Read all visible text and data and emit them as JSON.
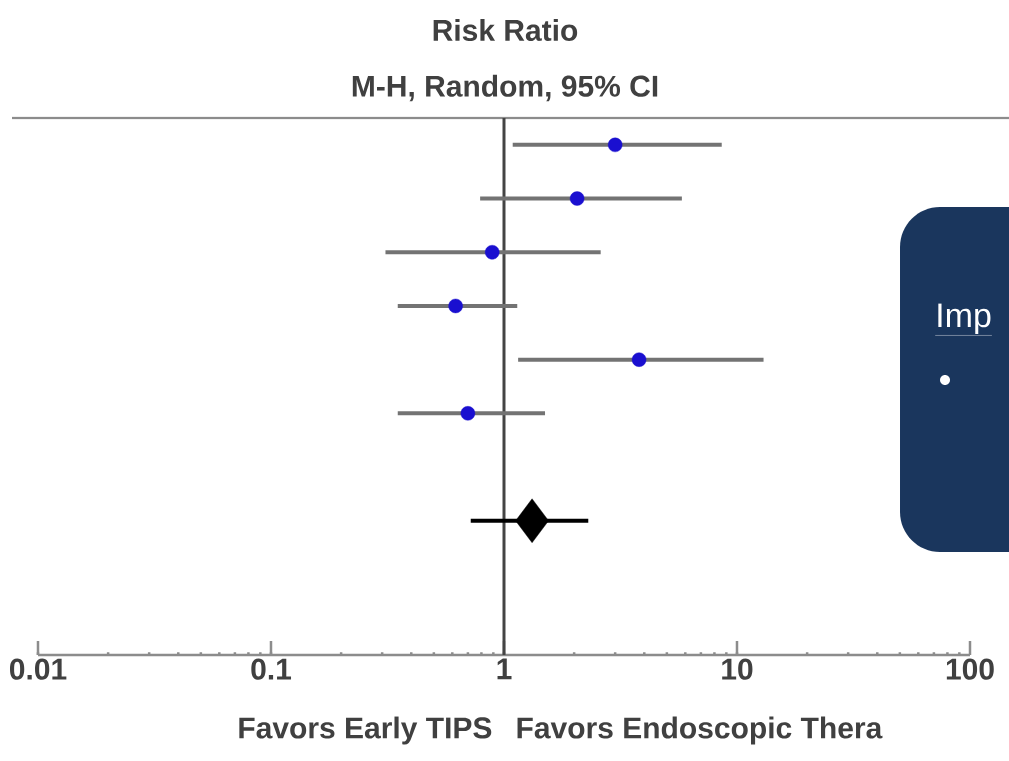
{
  "chart_data": {
    "type": "scatter",
    "orientation": "horizontal",
    "title": "Risk Ratio",
    "subtitle": "M-H, Random, 95% CI",
    "categories": [
      null,
      null,
      null,
      null,
      null,
      null,
      null,
      null,
      null,
      null
    ],
    "log": "x",
    "xlim": [
      0.01,
      100
    ],
    "xticks": [
      0.01,
      0.1,
      1,
      10,
      100
    ],
    "ref_lines": [
      {
        "axis": "x",
        "value": 1,
        "color": "#444444"
      }
    ],
    "series": [
      {
        "type": "scatter",
        "marker": "circle",
        "color": "#1a0fd0",
        "values": [
          3.0,
          2.06,
          0.89,
          0.62,
          3.8,
          0.7,
          null,
          null,
          null,
          null
        ],
        "errors": [
          [
            1.09,
            8.6
          ],
          [
            0.79,
            5.8
          ],
          [
            0.31,
            2.6
          ],
          [
            0.35,
            1.14
          ],
          [
            1.15,
            13
          ],
          [
            0.35,
            1.5
          ],
          null,
          null,
          null,
          null
        ]
      },
      {
        "type": "scatter",
        "marker": "diamond",
        "color": "#000000",
        "values": [
          null,
          null,
          null,
          null,
          null,
          null,
          null,
          1.32,
          null,
          null
        ],
        "errors": [
          null,
          null,
          null,
          null,
          null,
          null,
          null,
          [
            0.72,
            2.3
          ],
          null,
          null
        ]
      }
    ],
    "annotations": [
      "Favors Early TIPS",
      "Favors Endoscopic Thera",
      "Imp"
    ]
  }
}
